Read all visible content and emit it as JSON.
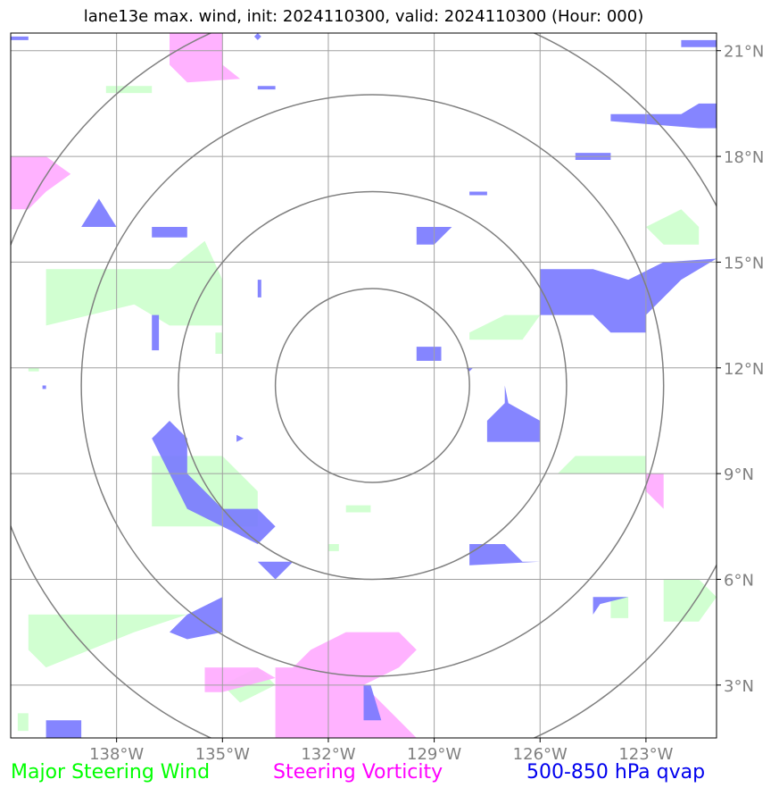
{
  "title": "lane13e max. wind, init: 2024110300, valid: 2024110300 (Hour: 000)",
  "map": {
    "lon_range": [
      -141,
      -121
    ],
    "lat_range": [
      1.5,
      21.5
    ],
    "lon_ticks": [
      {
        "value": -138,
        "label": "138°W"
      },
      {
        "value": -135,
        "label": "135°W"
      },
      {
        "value": -132,
        "label": "132°W"
      },
      {
        "value": -129,
        "label": "129°W"
      },
      {
        "value": -126,
        "label": "126°W"
      },
      {
        "value": -123,
        "label": "123°W"
      }
    ],
    "lat_ticks": [
      {
        "value": 3,
        "label": "3°N"
      },
      {
        "value": 6,
        "label": "6°N"
      },
      {
        "value": 9,
        "label": "9°N"
      },
      {
        "value": 12,
        "label": "12°N"
      },
      {
        "value": 15,
        "label": "15°N"
      },
      {
        "value": 18,
        "label": "18°N"
      },
      {
        "value": 21,
        "label": "21°N"
      }
    ],
    "center": {
      "lon": -130.75,
      "lat": 11.5
    },
    "range_rings_deg": [
      2.75,
      5.5,
      8.25,
      11.0
    ],
    "grid_color": "#a0a0a0",
    "ring_color": "#808080",
    "layers": {
      "steering_wind": {
        "color": "#ccffcc",
        "polygons": [
          [
            [
              -138.3,
              20.0
            ],
            [
              -137.0,
              20.0
            ],
            [
              -137.0,
              19.8
            ],
            [
              -138.3,
              19.8
            ]
          ],
          [
            [
              -140.0,
              14.8
            ],
            [
              -136.5,
              14.8
            ],
            [
              -135.5,
              15.6
            ],
            [
              -135.0,
              14.5
            ],
            [
              -135.0,
              13.2
            ],
            [
              -136.5,
              13.2
            ],
            [
              -137.5,
              13.8
            ],
            [
              -140.0,
              13.2
            ],
            [
              -140.0,
              14.8
            ]
          ],
          [
            [
              -135.2,
              13.0
            ],
            [
              -135.0,
              13.0
            ],
            [
              -135.0,
              12.4
            ],
            [
              -135.2,
              12.4
            ]
          ],
          [
            [
              -128.0,
              13.0
            ],
            [
              -127.0,
              13.5
            ],
            [
              -126.0,
              13.5
            ],
            [
              -126.5,
              12.8
            ],
            [
              -128.0,
              12.8
            ]
          ],
          [
            [
              -140.5,
              12.0
            ],
            [
              -140.2,
              12.0
            ],
            [
              -140.2,
              11.9
            ],
            [
              -140.5,
              11.9
            ]
          ],
          [
            [
              -123.0,
              16.0
            ],
            [
              -122.0,
              16.5
            ],
            [
              -121.5,
              16.0
            ],
            [
              -121.5,
              15.5
            ],
            [
              -122.5,
              15.5
            ],
            [
              -123.0,
              16.0
            ]
          ],
          [
            [
              -125.0,
              9.5
            ],
            [
              -123.0,
              9.5
            ],
            [
              -123.0,
              9.0
            ],
            [
              -125.5,
              9.0
            ],
            [
              -125.0,
              9.5
            ]
          ],
          [
            [
              -137.0,
              9.5
            ],
            [
              -135.0,
              9.5
            ],
            [
              -134.0,
              8.5
            ],
            [
              -134.0,
              7.5
            ],
            [
              -137.0,
              7.5
            ],
            [
              -137.0,
              9.5
            ]
          ],
          [
            [
              -131.5,
              8.1
            ],
            [
              -130.8,
              8.1
            ],
            [
              -130.8,
              7.9
            ],
            [
              -131.5,
              7.9
            ]
          ],
          [
            [
              -132.0,
              7.0
            ],
            [
              -131.7,
              7.0
            ],
            [
              -131.7,
              6.8
            ],
            [
              -132.0,
              6.8
            ]
          ],
          [
            [
              -124.0,
              5.5
            ],
            [
              -123.5,
              5.5
            ],
            [
              -123.5,
              4.9
            ],
            [
              -124.0,
              4.9
            ]
          ],
          [
            [
              -122.5,
              6.0
            ],
            [
              -121.5,
              6.0
            ],
            [
              -121.0,
              5.5
            ],
            [
              -121.5,
              4.8
            ],
            [
              -122.5,
              4.8
            ],
            [
              -122.5,
              6.0
            ]
          ],
          [
            [
              -140.5,
              5.0
            ],
            [
              -139.0,
              5.0
            ],
            [
              -136.0,
              5.0
            ],
            [
              -137.5,
              4.5
            ],
            [
              -140.0,
              3.5
            ],
            [
              -140.5,
              4.0
            ],
            [
              -140.5,
              5.0
            ]
          ],
          [
            [
              -135.0,
              3.0
            ],
            [
              -134.0,
              3.5
            ],
            [
              -133.5,
              3.0
            ],
            [
              -134.5,
              2.5
            ],
            [
              -135.0,
              3.0
            ]
          ],
          [
            [
              -140.8,
              2.2
            ],
            [
              -140.5,
              2.2
            ],
            [
              -140.5,
              1.7
            ],
            [
              -140.8,
              1.7
            ]
          ]
        ]
      },
      "steering_vorticity": {
        "color": "#ffaaff",
        "polygons": [
          [
            [
              -136.5,
              21.5
            ],
            [
              -135.0,
              21.5
            ],
            [
              -135.0,
              20.6
            ],
            [
              -134.5,
              20.2
            ],
            [
              -136.0,
              20.1
            ],
            [
              -136.5,
              20.6
            ],
            [
              -136.5,
              21.5
            ]
          ],
          [
            [
              -141.0,
              18.0
            ],
            [
              -140.0,
              18.0
            ],
            [
              -139.3,
              17.5
            ],
            [
              -140.0,
              17.0
            ],
            [
              -140.5,
              16.5
            ],
            [
              -141.0,
              16.5
            ],
            [
              -141.0,
              18.0
            ]
          ],
          [
            [
              -123.0,
              9.0
            ],
            [
              -122.5,
              9.0
            ],
            [
              -122.5,
              8.0
            ],
            [
              -123.0,
              8.5
            ]
          ],
          [
            [
              -132.5,
              4.0
            ],
            [
              -131.5,
              4.5
            ],
            [
              -130.0,
              4.5
            ],
            [
              -129.5,
              4.0
            ],
            [
              -130.0,
              3.5
            ],
            [
              -131.0,
              3.0
            ],
            [
              -130.5,
              2.5
            ],
            [
              -130.0,
              2.0
            ],
            [
              -129.5,
              1.5
            ],
            [
              -133.5,
              1.5
            ],
            [
              -133.5,
              3.5
            ],
            [
              -133.0,
              3.5
            ],
            [
              -132.5,
              4.0
            ]
          ],
          [
            [
              -135.5,
              3.5
            ],
            [
              -134.0,
              3.5
            ],
            [
              -133.5,
              3.2
            ],
            [
              -135.0,
              2.8
            ],
            [
              -135.5,
              2.8
            ]
          ]
        ]
      },
      "qvap": {
        "color": "#7878ff",
        "polygons": [
          [
            [
              -141.0,
              21.4
            ],
            [
              -140.5,
              21.4
            ],
            [
              -140.5,
              21.3
            ],
            [
              -141.0,
              21.3
            ]
          ],
          [
            [
              -134.0,
              21.5
            ],
            [
              -133.9,
              21.4
            ],
            [
              -134.0,
              21.3
            ],
            [
              -134.1,
              21.4
            ]
          ],
          [
            [
              -134.0,
              20.0
            ],
            [
              -133.5,
              20.0
            ],
            [
              -133.5,
              19.9
            ],
            [
              -134.0,
              19.9
            ]
          ],
          [
            [
              -122.0,
              21.3
            ],
            [
              -121.0,
              21.3
            ],
            [
              -121.0,
              21.1
            ],
            [
              -122.0,
              21.1
            ]
          ],
          [
            [
              -124.0,
              19.2
            ],
            [
              -122.0,
              19.2
            ],
            [
              -121.5,
              19.5
            ],
            [
              -121.0,
              19.5
            ],
            [
              -121.0,
              18.8
            ],
            [
              -121.5,
              18.8
            ],
            [
              -124.0,
              19.0
            ]
          ],
          [
            [
              -125.0,
              18.1
            ],
            [
              -124.0,
              18.1
            ],
            [
              -124.0,
              17.9
            ],
            [
              -125.0,
              17.9
            ]
          ],
          [
            [
              -128.0,
              17.0
            ],
            [
              -127.5,
              17.0
            ],
            [
              -127.5,
              16.9
            ],
            [
              -128.0,
              16.9
            ]
          ],
          [
            [
              -138.5,
              16.8
            ],
            [
              -138.0,
              16.0
            ],
            [
              -139.0,
              16.0
            ]
          ],
          [
            [
              -137.0,
              16.0
            ],
            [
              -136.0,
              16.0
            ],
            [
              -136.0,
              15.7
            ],
            [
              -137.0,
              15.7
            ]
          ],
          [
            [
              -129.5,
              16.0
            ],
            [
              -128.5,
              16.0
            ],
            [
              -129.0,
              15.5
            ],
            [
              -129.5,
              15.5
            ]
          ],
          [
            [
              -126.0,
              14.8
            ],
            [
              -124.5,
              14.8
            ],
            [
              -123.5,
              14.5
            ],
            [
              -122.5,
              15.0
            ],
            [
              -121.0,
              15.1
            ],
            [
              -122.0,
              14.5
            ],
            [
              -123.0,
              13.5
            ],
            [
              -123.0,
              13.0
            ],
            [
              -124.0,
              13.0
            ],
            [
              -124.5,
              13.5
            ],
            [
              -126.0,
              13.5
            ],
            [
              -126.0,
              14.8
            ]
          ],
          [
            [
              -134.0,
              14.5
            ],
            [
              -133.9,
              14.5
            ],
            [
              -133.9,
              14.0
            ],
            [
              -134.0,
              14.0
            ]
          ],
          [
            [
              -137.0,
              13.5
            ],
            [
              -136.8,
              13.5
            ],
            [
              -136.8,
              12.5
            ],
            [
              -137.0,
              12.5
            ]
          ],
          [
            [
              -129.5,
              12.6
            ],
            [
              -128.8,
              12.6
            ],
            [
              -128.8,
              12.2
            ],
            [
              -129.5,
              12.2
            ]
          ],
          [
            [
              -128.1,
              12.0
            ],
            [
              -127.9,
              12.0
            ],
            [
              -128.0,
              11.9
            ]
          ],
          [
            [
              -140.1,
              11.5
            ],
            [
              -140.0,
              11.5
            ],
            [
              -140.0,
              11.4
            ],
            [
              -140.1,
              11.4
            ]
          ],
          [
            [
              -127.0,
              11.5
            ],
            [
              -126.9,
              11.0
            ],
            [
              -126.0,
              10.5
            ],
            [
              -126.0,
              9.9
            ],
            [
              -127.5,
              9.9
            ],
            [
              -127.5,
              10.5
            ],
            [
              -127.0,
              11.0
            ]
          ],
          [
            [
              -134.6,
              10.1
            ],
            [
              -134.4,
              10.0
            ],
            [
              -134.6,
              9.9
            ]
          ],
          [
            [
              -136.5,
              10.5
            ],
            [
              -136.0,
              10.0
            ],
            [
              -136.0,
              9.0
            ],
            [
              -135.0,
              8.0
            ],
            [
              -134.0,
              8.0
            ],
            [
              -133.5,
              7.5
            ],
            [
              -134.0,
              7.0
            ],
            [
              -136.0,
              8.0
            ],
            [
              -136.5,
              9.0
            ],
            [
              -137.0,
              10.0
            ]
          ],
          [
            [
              -134.0,
              6.5
            ],
            [
              -133.0,
              6.5
            ],
            [
              -133.5,
              6.0
            ]
          ],
          [
            [
              -128.0,
              7.0
            ],
            [
              -127.0,
              7.0
            ],
            [
              -126.5,
              6.5
            ],
            [
              -126.0,
              6.5
            ],
            [
              -128.0,
              6.4
            ]
          ],
          [
            [
              -124.5,
              5.5
            ],
            [
              -123.5,
              5.5
            ],
            [
              -124.3,
              5.3
            ],
            [
              -124.5,
              5.0
            ]
          ],
          [
            [
              -136.0,
              5.0
            ],
            [
              -135.0,
              5.5
            ],
            [
              -135.0,
              4.5
            ],
            [
              -136.0,
              4.3
            ],
            [
              -136.5,
              4.5
            ]
          ],
          [
            [
              -140.0,
              2.0
            ],
            [
              -139.0,
              2.0
            ],
            [
              -139.0,
              1.5
            ],
            [
              -140.0,
              1.5
            ]
          ],
          [
            [
              -131.0,
              3.0
            ],
            [
              -130.8,
              3.0
            ],
            [
              -130.5,
              2.0
            ],
            [
              -131.0,
              2.0
            ]
          ]
        ]
      }
    }
  },
  "legend": {
    "wind": {
      "label": "Major Steering Wind",
      "color": "#00ff00"
    },
    "vorticity": {
      "label": "Steering Vorticity",
      "color": "#ff00ff"
    },
    "qvap": {
      "label": "500-850 hPa qvap",
      "color": "#0000ee"
    }
  }
}
